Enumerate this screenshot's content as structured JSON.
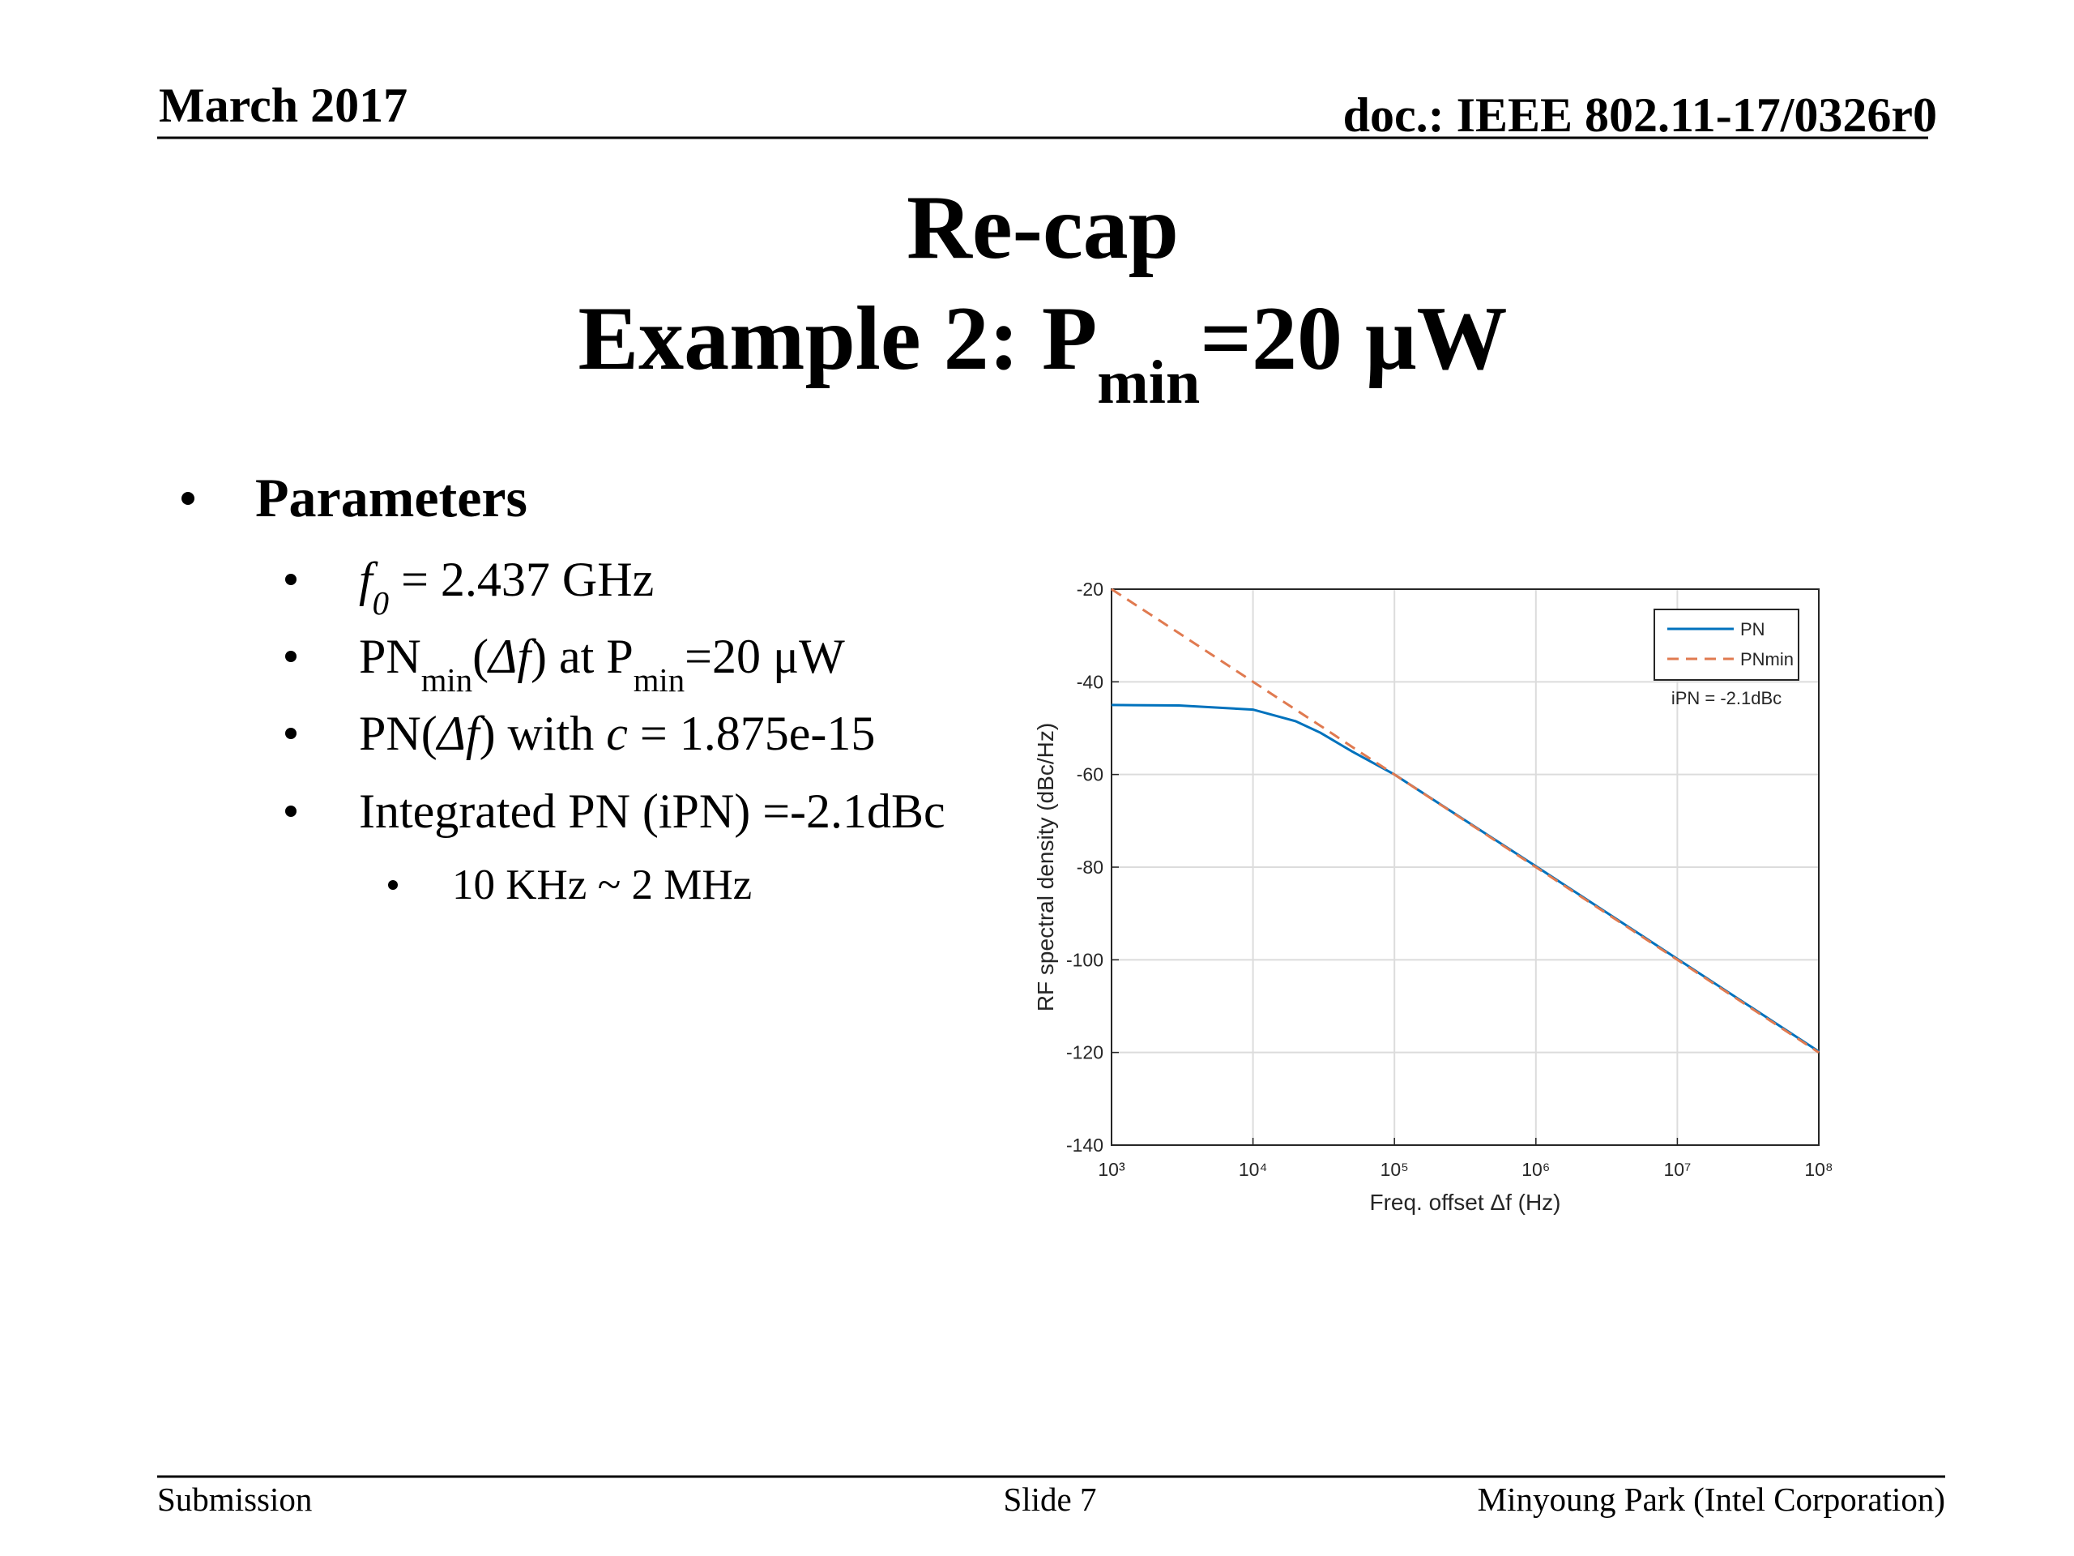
{
  "header": {
    "date": "March 2017",
    "doc": "doc.: IEEE 802.11-17/0326r0"
  },
  "title": {
    "line1": "Re-cap",
    "line2": [
      {
        "text": "Example 2: P"
      },
      {
        "text": "min",
        "sub": true
      },
      {
        "text": "=20 μW"
      }
    ]
  },
  "bullets": {
    "heading": "Parameters",
    "items": [
      [
        {
          "text": "f",
          "italic": true
        },
        {
          "text": "0",
          "sub": true,
          "italic": true
        },
        {
          "text": " = 2.437 GHz"
        }
      ],
      [
        {
          "text": "PN"
        },
        {
          "text": "min",
          "sub": true
        },
        {
          "text": "("
        },
        {
          "text": "Δf",
          "italic": true
        },
        {
          "text": ") at P"
        },
        {
          "text": "min",
          "sub": true
        },
        {
          "text": "=20 μW"
        }
      ],
      [
        {
          "text": "PN("
        },
        {
          "text": "Δf",
          "italic": true
        },
        {
          "text": ") with "
        },
        {
          "text": "c",
          "italic": true
        },
        {
          "text": " = 1.875e-15"
        }
      ],
      [
        {
          "text": "Integrated PN (iPN) =-2.1dBc"
        }
      ]
    ],
    "subitems": [
      "10 KHz ~ 2 MHz"
    ]
  },
  "chart_data": {
    "type": "line",
    "x": [
      1000,
      3000,
      10000,
      20000,
      30000,
      50000,
      100000,
      1000000,
      10000000,
      100000000
    ],
    "series": [
      {
        "name": "PN",
        "color": "#0072bd",
        "dashed": false,
        "values": [
          -45,
          -45.1,
          -46,
          -48.5,
          -51,
          -55,
          -60,
          -79.8,
          -99.8,
          -119.8
        ]
      },
      {
        "name": "PNmin",
        "color": "#e07a50",
        "dashed": true,
        "values": [
          -20,
          -29.5,
          -40,
          -46,
          -49.5,
          -54,
          -60,
          -80,
          -100,
          -120
        ]
      }
    ],
    "xscale": "log",
    "xlim": [
      1000,
      100000000
    ],
    "ylim": [
      -140,
      -20
    ],
    "xticks": [
      {
        "value": 1000,
        "label": "10³"
      },
      {
        "value": 10000,
        "label": "10⁴"
      },
      {
        "value": 100000,
        "label": "10⁵"
      },
      {
        "value": 1000000,
        "label": "10⁶"
      },
      {
        "value": 10000000,
        "label": "10⁷"
      },
      {
        "value": 100000000,
        "label": "10⁸"
      }
    ],
    "yticks": [
      -140,
      -120,
      -100,
      -80,
      -60,
      -40,
      -20
    ],
    "xlabel": "Freq. offset Δf (Hz)",
    "ylabel": "RF spectral density (dBc/Hz)",
    "grid": true,
    "legend": "northeast",
    "annotation": "iPN = -2.1dBc"
  },
  "footer": {
    "left": "Submission",
    "center": "Slide 7",
    "right": "Minyoung Park (Intel Corporation)"
  }
}
